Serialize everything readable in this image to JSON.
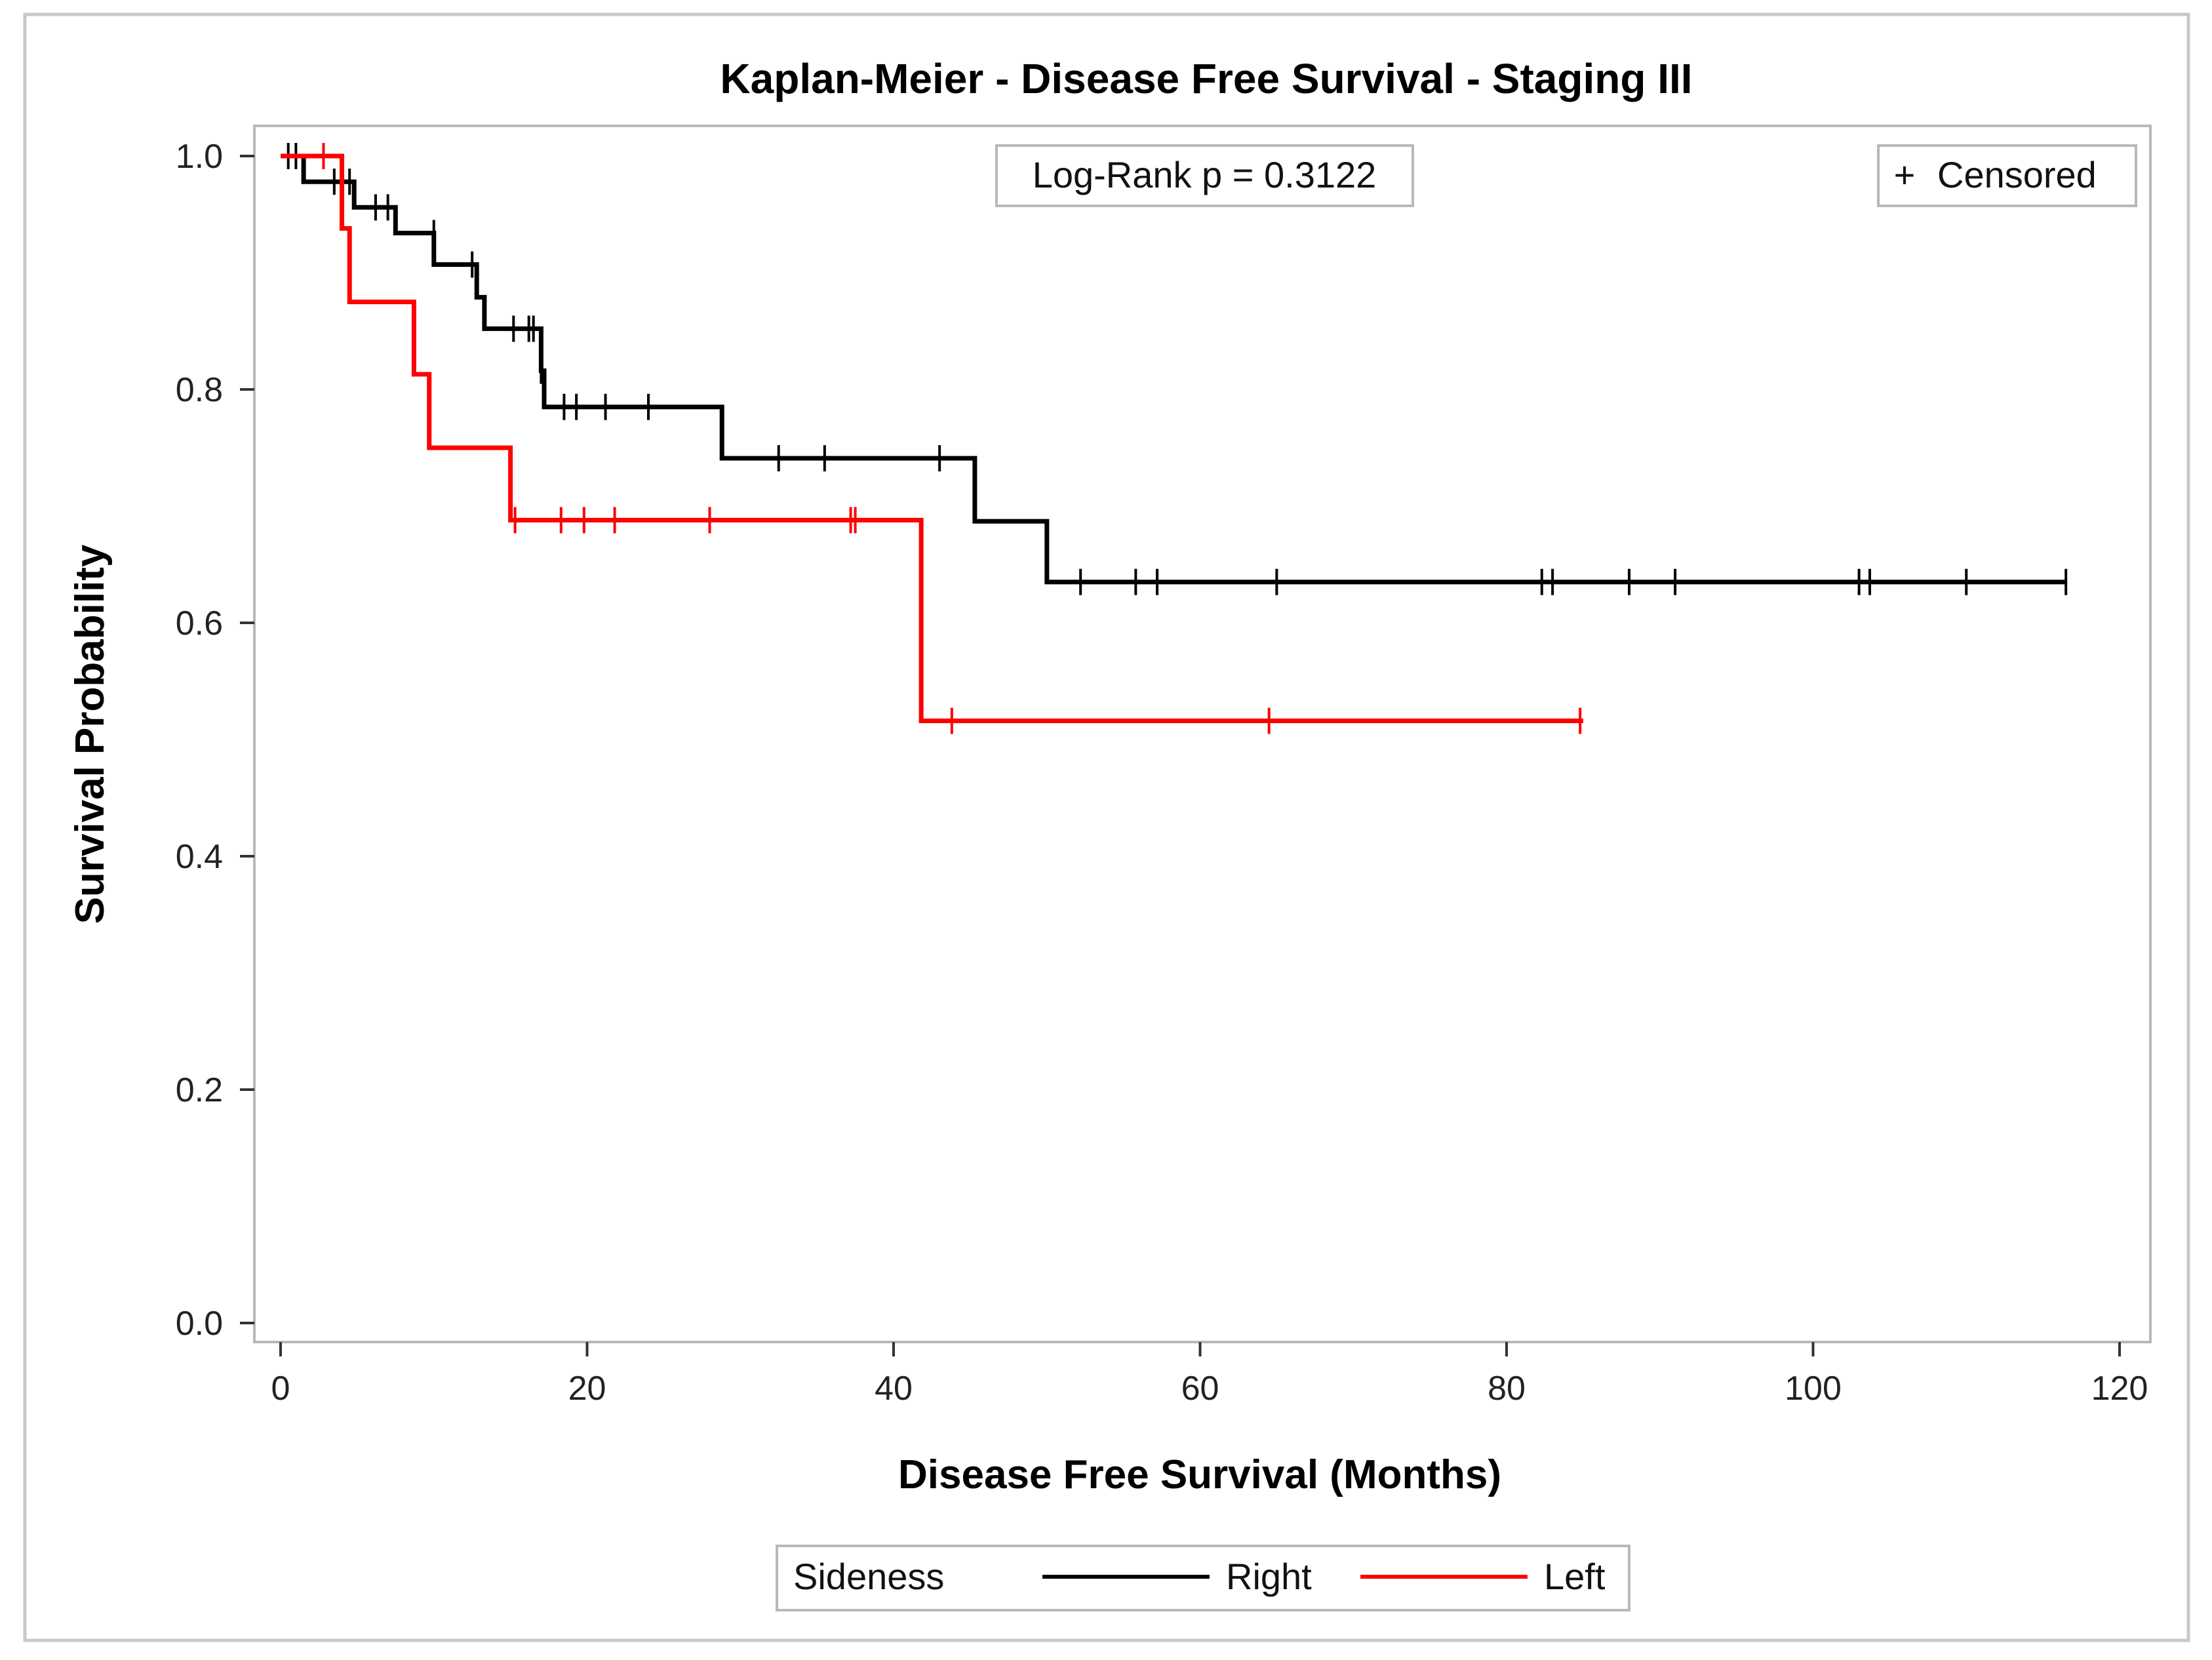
{
  "chart_data": {
    "type": "line",
    "step": true,
    "title": "Kaplan-Meier - Disease Free Survival - Staging III",
    "xlabel": "Disease Free Survival (Months)",
    "ylabel": "Survival Probability",
    "xlim": [
      0,
      120
    ],
    "ylim": [
      0,
      1.0
    ],
    "xticks": [
      "0",
      "20",
      "40",
      "60",
      "80",
      "100",
      "120"
    ],
    "yticks": [
      "0.0",
      "0.2",
      "0.4",
      "0.6",
      "0.8",
      "1.0"
    ],
    "annotation": "Log-Rank p = 0.3122",
    "censor_legend": {
      "symbol": "+",
      "label": "Censored"
    },
    "legend": {
      "title": "Sideness",
      "position": "bottom"
    },
    "series": [
      {
        "name": "Right",
        "color": "#000000",
        "steps": [
          [
            0,
            1.0
          ],
          [
            1.5,
            1.0
          ],
          [
            1.5,
            0.978
          ],
          [
            4.8,
            0.978
          ],
          [
            4.8,
            0.956
          ],
          [
            7.5,
            0.956
          ],
          [
            7.5,
            0.934
          ],
          [
            10,
            0.934
          ],
          [
            10,
            0.907
          ],
          [
            12.8,
            0.907
          ],
          [
            12.8,
            0.879
          ],
          [
            13.3,
            0.879
          ],
          [
            13.3,
            0.852
          ],
          [
            17,
            0.852
          ],
          [
            17,
            0.816
          ],
          [
            17.2,
            0.816
          ],
          [
            17.2,
            0.785
          ],
          [
            28.8,
            0.785
          ],
          [
            28.8,
            0.741
          ],
          [
            45.3,
            0.741
          ],
          [
            45.3,
            0.687
          ],
          [
            50,
            0.687
          ],
          [
            50,
            0.635
          ],
          [
            116.5,
            0.635
          ]
        ],
        "censored": [
          [
            0.5,
            1.0
          ],
          [
            1.0,
            1.0
          ],
          [
            3.5,
            0.978
          ],
          [
            4.5,
            0.978
          ],
          [
            6.2,
            0.956
          ],
          [
            7.0,
            0.956
          ],
          [
            10.0,
            0.934
          ],
          [
            12.5,
            0.907
          ],
          [
            15.2,
            0.852
          ],
          [
            16.2,
            0.852
          ],
          [
            16.5,
            0.852
          ],
          [
            17.0,
            0.816
          ],
          [
            18.5,
            0.785
          ],
          [
            19.3,
            0.785
          ],
          [
            21.2,
            0.785
          ],
          [
            24.0,
            0.785
          ],
          [
            32.5,
            0.741
          ],
          [
            35.5,
            0.741
          ],
          [
            43.0,
            0.741
          ],
          [
            52.2,
            0.635
          ],
          [
            55.8,
            0.635
          ],
          [
            57.2,
            0.635
          ],
          [
            65.0,
            0.635
          ],
          [
            82.3,
            0.635
          ],
          [
            83.0,
            0.635
          ],
          [
            88.0,
            0.635
          ],
          [
            91.0,
            0.635
          ],
          [
            103.0,
            0.635
          ],
          [
            103.7,
            0.635
          ],
          [
            110.0,
            0.635
          ],
          [
            116.5,
            0.635
          ]
        ]
      },
      {
        "name": "Left",
        "color": "#ff0000",
        "steps": [
          [
            0,
            1.0
          ],
          [
            4.0,
            1.0
          ],
          [
            4.0,
            0.938
          ],
          [
            4.5,
            0.938
          ],
          [
            4.5,
            0.875
          ],
          [
            8.7,
            0.875
          ],
          [
            8.7,
            0.813
          ],
          [
            9.7,
            0.813
          ],
          [
            9.7,
            0.75
          ],
          [
            15.0,
            0.75
          ],
          [
            15.0,
            0.688
          ],
          [
            41.8,
            0.688
          ],
          [
            41.8,
            0.516
          ],
          [
            85.0,
            0.516
          ]
        ],
        "censored": [
          [
            2.8,
            1.0
          ],
          [
            15.3,
            0.688
          ],
          [
            18.3,
            0.688
          ],
          [
            19.8,
            0.688
          ],
          [
            21.8,
            0.688
          ],
          [
            28.0,
            0.688
          ],
          [
            37.2,
            0.688
          ],
          [
            37.5,
            0.688
          ],
          [
            43.8,
            0.516
          ],
          [
            64.5,
            0.516
          ],
          [
            84.8,
            0.516
          ]
        ]
      }
    ]
  }
}
